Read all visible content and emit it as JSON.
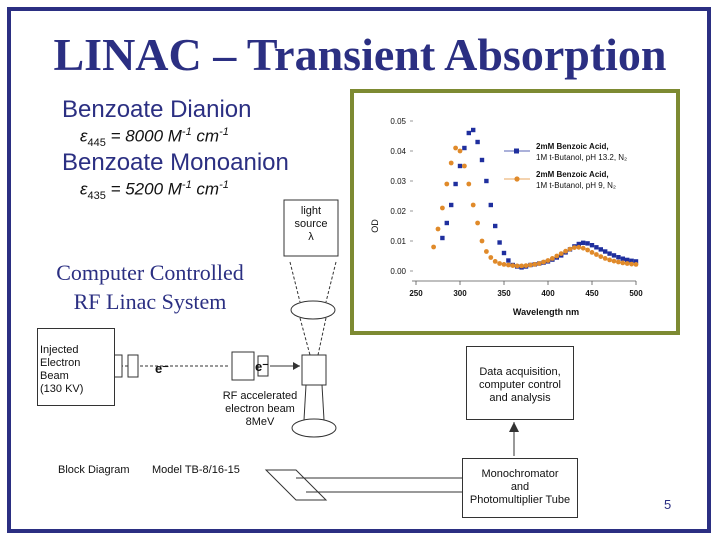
{
  "title": "LINAC – Transient Absorption",
  "dianion": {
    "label": "Benzoate Dianion",
    "eps_symbol": "ε",
    "eps_sub": "445",
    "eps_value": " = 8000 M",
    "eps_exp": "-1",
    "eps_unit": " cm",
    "eps_unit_exp": "-1"
  },
  "monoanion": {
    "label": "Benzoate Monoanion",
    "eps_symbol": "ε",
    "eps_sub": "435",
    "eps_value": " = 5200 M",
    "eps_exp": "-1",
    "eps_unit": " cm",
    "eps_unit_exp": "-1"
  },
  "computer_controlled": {
    "line1": "Computer Controlled",
    "line2": "RF Linac System"
  },
  "diagram": {
    "light_source": {
      "line1": "light",
      "line2": "source",
      "line3": "λ"
    },
    "injected": {
      "line1": "Injected",
      "line2": "Electron",
      "line3": "Beam",
      "line4": "(130 KV)"
    },
    "e_minus_1": "e⁻",
    "e_minus_2": "e⁻",
    "rf_beam": {
      "line1": "RF accelerated",
      "line2": "electron beam",
      "line3": "8MeV"
    },
    "daq": {
      "line1": "Data acquisition,",
      "line2": "computer control",
      "line3": "and analysis"
    },
    "mono": {
      "line1": "Monochromator",
      "line2": "and",
      "line3": "Photomultiplier Tube"
    },
    "block_diagram": "Block Diagram",
    "model": "Model TB-8/16-15"
  },
  "page_number": "5",
  "chart_data": {
    "type": "scatter",
    "xlabel": "Wavelength nm",
    "ylabel": "OD",
    "xlim": [
      250,
      500
    ],
    "ylim": [
      0.0,
      0.05
    ],
    "x_ticks": [
      "250",
      "300",
      "350",
      "400",
      "450",
      "500"
    ],
    "y_ticks": [
      "0.00",
      "0.01",
      "0.02",
      "0.03",
      "0.04",
      "0.05"
    ],
    "y_tick_values": [
      0.0,
      0.01,
      0.02,
      0.03,
      0.04,
      0.05
    ],
    "series": [
      {
        "name_line1": "2mM Benzoic Acid,",
        "name_line2": "1M t-Butanol, pH 13.2, N₂",
        "color": "#1f2f9e",
        "marker": "square",
        "x": [
          280,
          285,
          290,
          295,
          300,
          305,
          310,
          315,
          320,
          325,
          330,
          335,
          340,
          345,
          350,
          355,
          360,
          365,
          370,
          375,
          380,
          385,
          390,
          395,
          400,
          405,
          410,
          415,
          420,
          425,
          430,
          435,
          440,
          445,
          450,
          455,
          460,
          465,
          470,
          475,
          480,
          485,
          490,
          495,
          500
        ],
        "y": [
          0.011,
          0.016,
          0.022,
          0.029,
          0.035,
          0.041,
          0.046,
          0.047,
          0.043,
          0.037,
          0.03,
          0.022,
          0.015,
          0.0095,
          0.006,
          0.0035,
          0.002,
          0.0015,
          0.0012,
          0.0015,
          0.002,
          0.0022,
          0.0025,
          0.0028,
          0.0032,
          0.0038,
          0.0045,
          0.0052,
          0.0062,
          0.0072,
          0.0082,
          0.009,
          0.0094,
          0.0092,
          0.0086,
          0.0079,
          0.0072,
          0.0065,
          0.0058,
          0.0052,
          0.0046,
          0.0041,
          0.0037,
          0.0034,
          0.0032
        ]
      },
      {
        "name_line1": "2mM Benzoic Acid,",
        "name_line2": "1M t-Butanol, pH 9, N₂",
        "color": "#e08a2a",
        "marker": "circle",
        "x": [
          270,
          275,
          280,
          285,
          290,
          295,
          300,
          305,
          310,
          315,
          320,
          325,
          330,
          335,
          340,
          345,
          350,
          355,
          360,
          365,
          370,
          375,
          380,
          385,
          390,
          395,
          400,
          405,
          410,
          415,
          420,
          425,
          430,
          435,
          440,
          445,
          450,
          455,
          460,
          465,
          470,
          475,
          480,
          485,
          490,
          495,
          500
        ],
        "y": [
          0.008,
          0.014,
          0.021,
          0.029,
          0.036,
          0.041,
          0.04,
          0.035,
          0.029,
          0.022,
          0.016,
          0.01,
          0.0065,
          0.0045,
          0.0032,
          0.0025,
          0.0022,
          0.002,
          0.0018,
          0.0017,
          0.0017,
          0.0018,
          0.002,
          0.0022,
          0.0025,
          0.003,
          0.0035,
          0.0042,
          0.005,
          0.0058,
          0.0066,
          0.0073,
          0.0078,
          0.0079,
          0.0076,
          0.007,
          0.0062,
          0.0055,
          0.0048,
          0.0042,
          0.0037,
          0.0033,
          0.003,
          0.0027,
          0.0025,
          0.0023,
          0.0022
        ]
      }
    ]
  }
}
